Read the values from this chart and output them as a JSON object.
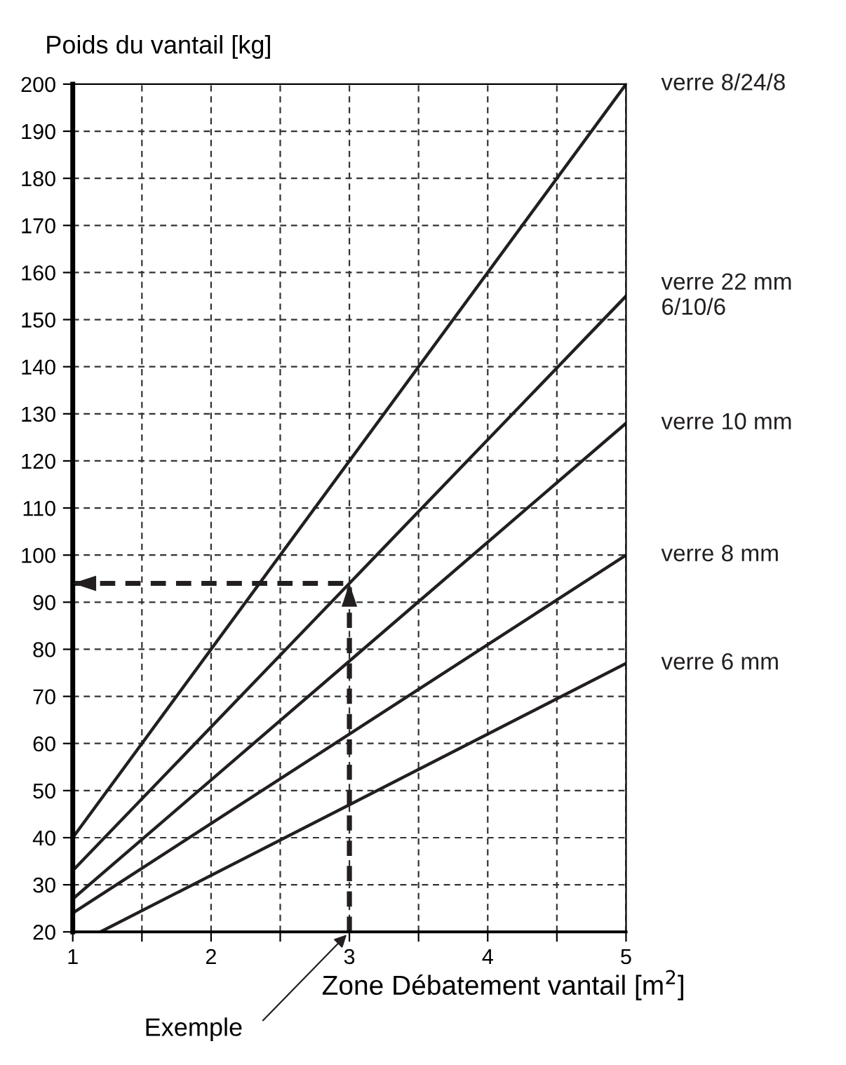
{
  "chart_data": {
    "type": "line",
    "ylabel": "Poids du vantail [kg]",
    "xlabel": "Zone Débatement vantail [m$^{2}$]",
    "xlim": [
      1,
      5
    ],
    "ylim": [
      20,
      200
    ],
    "xticks": [
      1,
      {
        "value": 1.5,
        "label": null
      },
      2,
      {
        "value": 2.5,
        "label": null
      },
      3,
      {
        "value": 3.5,
        "label": null
      },
      4,
      {
        "value": 4.5,
        "label": null
      },
      5
    ],
    "yticks": [
      20,
      30,
      40,
      50,
      60,
      70,
      80,
      90,
      100,
      110,
      120,
      130,
      140,
      150,
      160,
      170,
      180,
      190,
      200
    ],
    "grid": true,
    "legend": false,
    "marker": "none",
    "line_style": "solid",
    "series": [
      {
        "name": "verre 8/24/8",
        "color": "#231f20",
        "x": [
          1,
          5
        ],
        "values": [
          40,
          200
        ]
      },
      {
        "name": "verre 22 mm\n6/10/6",
        "color": "#231f20",
        "x": [
          1,
          5
        ],
        "values": [
          33,
          155
        ]
      },
      {
        "name": "verre 10 mm",
        "color": "#231f20",
        "x": [
          1,
          5
        ],
        "values": [
          27,
          128
        ]
      },
      {
        "name": "verre 8 mm",
        "color": "#231f20",
        "x": [
          1,
          5
        ],
        "values": [
          24,
          100
        ]
      },
      {
        "name": "verre 6 mm",
        "color": "#231f20",
        "x": [
          1.2,
          5
        ],
        "values": [
          20,
          77
        ]
      },
      {
        "color": "#231f20",
        "x": [
          3,
          3,
          1
        ],
        "values": [
          20,
          94,
          94
        ],
        "line_style": "dashed"
      }
    ],
    "annotations": [
      {
        "text": "Exemple",
        "x": 3,
        "y": 20
      }
    ]
  }
}
